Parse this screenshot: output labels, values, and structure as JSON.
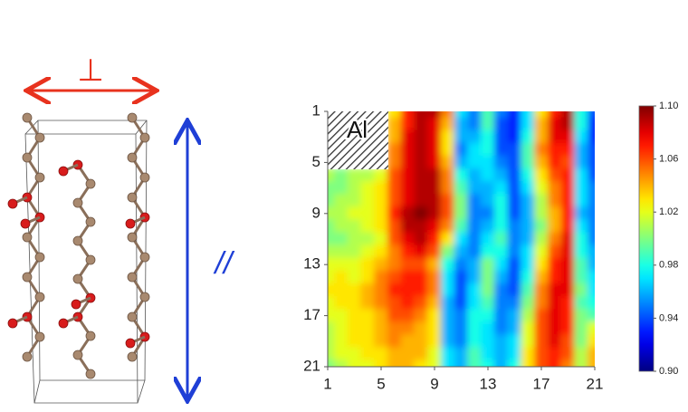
{
  "chart_data": {
    "type": "heatmap",
    "x": [
      1,
      2,
      3,
      4,
      5,
      6,
      7,
      8,
      9,
      10,
      11,
      12,
      13,
      14,
      15,
      16,
      17,
      18,
      19,
      20,
      21
    ],
    "y": [
      1,
      2,
      3,
      4,
      5,
      6,
      7,
      8,
      9,
      10,
      11,
      12,
      13,
      14,
      15,
      16,
      17,
      18,
      19,
      20,
      21
    ],
    "xlim": [
      1,
      21
    ],
    "ylim": [
      1,
      21
    ],
    "xticks": [
      1,
      5,
      9,
      13,
      17,
      21
    ],
    "yticks": [
      1,
      5,
      9,
      13,
      17,
      21
    ],
    "zlim": [
      0.9,
      1.1
    ],
    "zticks": [
      {
        "value": 0.9,
        "label": "0.90"
      },
      0.94,
      0.98,
      1.02,
      1.06,
      {
        "value": 1.1,
        "label": "1.10"
      }
    ],
    "colormap": "jet",
    "annotations": [
      "Al"
    ],
    "values": [
      [
        null,
        null,
        null,
        null,
        null,
        1.03,
        1.07,
        1.09,
        1.09,
        1.05,
        0.97,
        0.95,
        0.99,
        0.95,
        0.93,
        0.97,
        1.03,
        1.07,
        1.09,
        0.98,
        0.94
      ],
      [
        null,
        null,
        null,
        null,
        null,
        1.04,
        1.07,
        1.09,
        1.08,
        1.04,
        0.96,
        0.95,
        0.99,
        0.94,
        0.93,
        0.97,
        1.04,
        1.08,
        1.09,
        0.98,
        0.93
      ],
      [
        null,
        null,
        null,
        null,
        null,
        1.04,
        1.08,
        1.09,
        1.08,
        1.03,
        0.96,
        0.96,
        0.98,
        0.94,
        0.93,
        0.98,
        1.04,
        1.08,
        1.08,
        0.97,
        0.93
      ],
      [
        null,
        null,
        null,
        null,
        null,
        1.05,
        1.08,
        1.09,
        1.08,
        1.03,
        0.95,
        0.97,
        0.98,
        0.94,
        0.94,
        0.99,
        1.05,
        1.07,
        1.07,
        0.96,
        0.94
      ],
      [
        null,
        null,
        null,
        null,
        null,
        1.05,
        1.08,
        1.09,
        1.08,
        1.04,
        0.96,
        0.97,
        0.97,
        0.95,
        0.94,
        0.99,
        1.04,
        1.07,
        1.06,
        0.96,
        0.94
      ],
      [
        1.01,
        1.0,
        1.01,
        1.01,
        1.02,
        1.06,
        1.08,
        1.09,
        1.09,
        1.05,
        0.98,
        0.96,
        0.97,
        0.96,
        0.94,
        0.98,
        1.03,
        1.06,
        1.07,
        0.97,
        0.94
      ],
      [
        1.0,
        1.0,
        1.01,
        1.02,
        1.03,
        1.06,
        1.08,
        1.09,
        1.09,
        1.05,
        0.99,
        0.96,
        0.96,
        0.97,
        0.94,
        0.97,
        1.02,
        1.05,
        1.07,
        0.97,
        0.95
      ],
      [
        1.0,
        1.01,
        1.01,
        1.02,
        1.03,
        1.06,
        1.08,
        1.09,
        1.09,
        1.06,
        1.0,
        0.95,
        0.96,
        0.98,
        0.94,
        0.96,
        1.01,
        1.05,
        1.07,
        0.97,
        0.95
      ],
      [
        1.01,
        1.01,
        1.02,
        1.02,
        1.03,
        1.07,
        1.09,
        1.1,
        1.09,
        1.06,
        1.0,
        0.95,
        0.95,
        0.98,
        0.94,
        0.96,
        1.01,
        1.04,
        1.07,
        0.96,
        0.95
      ],
      [
        1.0,
        1.01,
        1.01,
        1.02,
        1.03,
        1.06,
        1.09,
        1.09,
        1.08,
        1.05,
        0.99,
        0.95,
        0.96,
        0.98,
        0.95,
        0.96,
        1.0,
        1.04,
        1.07,
        0.97,
        0.95
      ],
      [
        1.0,
        1.0,
        1.01,
        1.01,
        1.02,
        1.06,
        1.08,
        1.09,
        1.07,
        1.03,
        0.97,
        0.95,
        0.97,
        0.99,
        0.95,
        0.96,
        1.01,
        1.05,
        1.08,
        0.98,
        0.95
      ],
      [
        1.01,
        1.01,
        1.01,
        1.02,
        1.03,
        1.05,
        1.07,
        1.08,
        1.06,
        1.0,
        0.96,
        0.95,
        0.98,
        0.98,
        0.95,
        0.97,
        1.02,
        1.06,
        1.08,
        0.98,
        0.96
      ],
      [
        1.02,
        1.02,
        1.02,
        1.03,
        1.04,
        1.05,
        1.06,
        1.06,
        1.04,
        0.98,
        0.95,
        0.96,
        1.0,
        0.97,
        0.94,
        0.97,
        1.03,
        1.07,
        1.08,
        0.99,
        0.96
      ],
      [
        1.02,
        1.03,
        1.02,
        1.03,
        1.05,
        1.06,
        1.07,
        1.07,
        1.05,
        0.97,
        0.94,
        0.96,
        1.0,
        0.96,
        0.94,
        0.98,
        1.04,
        1.07,
        1.08,
        0.99,
        0.97
      ],
      [
        1.03,
        1.03,
        1.03,
        1.04,
        1.05,
        1.07,
        1.07,
        1.07,
        1.05,
        0.97,
        0.94,
        0.97,
        1.0,
        0.95,
        0.94,
        0.99,
        1.05,
        1.08,
        1.08,
        1.0,
        0.97
      ],
      [
        1.02,
        1.03,
        1.03,
        1.04,
        1.05,
        1.06,
        1.07,
        1.06,
        1.04,
        0.96,
        0.94,
        0.97,
        0.99,
        0.95,
        0.95,
        1.0,
        1.05,
        1.08,
        1.07,
        0.99,
        0.98
      ],
      [
        1.02,
        1.02,
        1.03,
        1.03,
        1.04,
        1.06,
        1.06,
        1.05,
        1.03,
        0.96,
        0.95,
        0.98,
        0.98,
        0.95,
        0.96,
        1.01,
        1.06,
        1.08,
        1.07,
        1.0,
        0.99
      ],
      [
        1.01,
        1.02,
        1.03,
        1.03,
        1.04,
        1.05,
        1.05,
        1.04,
        1.03,
        0.96,
        0.95,
        0.98,
        0.97,
        0.95,
        0.96,
        1.02,
        1.06,
        1.08,
        1.07,
        1.0,
        1.02
      ],
      [
        1.01,
        1.02,
        1.03,
        1.03,
        1.04,
        1.05,
        1.04,
        1.04,
        1.03,
        0.96,
        0.95,
        0.98,
        0.97,
        0.96,
        0.97,
        1.02,
        1.06,
        1.08,
        1.06,
        1.0,
        1.03
      ],
      [
        1.01,
        1.02,
        1.02,
        1.03,
        1.03,
        1.04,
        1.04,
        1.04,
        1.02,
        0.97,
        0.96,
        0.99,
        0.97,
        0.96,
        0.97,
        1.03,
        1.06,
        1.07,
        1.06,
        1.01,
        1.04
      ],
      [
        1.0,
        1.01,
        1.02,
        1.02,
        1.03,
        1.04,
        1.04,
        1.03,
        1.02,
        0.97,
        0.96,
        0.99,
        0.98,
        0.96,
        0.98,
        1.03,
        1.06,
        1.07,
        1.05,
        1.01,
        1.04
      ]
    ]
  },
  "structure_labels": {
    "perpendicular": "⊥",
    "parallel": "//"
  }
}
